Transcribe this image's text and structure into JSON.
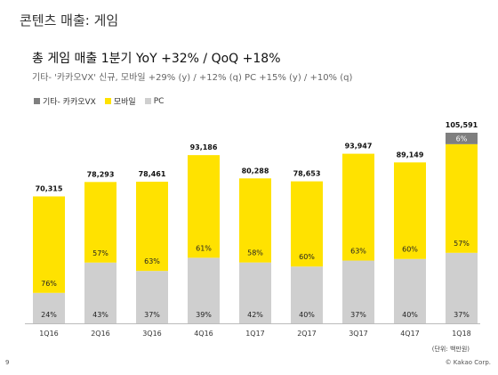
{
  "page_title": "콘텐츠 매출: 게임",
  "headline": "총 게임 매출 1분기 YoY +32% / QoQ +18%",
  "subline": "기타- '카카오VX' 신규, 모바일 +29% (y) / +12% (q)  PC +15% (y) / +10% (q)",
  "unit_note": "(단위: 백만원)",
  "page_number": "9",
  "copyright": "© Kakao Corp.",
  "colors": {
    "other": "#7f7f7f",
    "mobile": "#ffe200",
    "pc": "#cfcfcf"
  },
  "chart_data": {
    "type": "bar",
    "stacked": true,
    "categories": [
      "1Q16",
      "2Q16",
      "3Q16",
      "4Q16",
      "1Q17",
      "2Q17",
      "3Q17",
      "4Q17",
      "1Q18"
    ],
    "totals": [
      70315,
      78293,
      78461,
      93186,
      80288,
      78653,
      93947,
      89149,
      105591
    ],
    "total_labels": [
      "70,315",
      "78,293",
      "78,461",
      "93,186",
      "80,288",
      "78,653",
      "93,947",
      "89,149",
      "105,591"
    ],
    "series": [
      {
        "name": "PC",
        "key": "pc",
        "shares": [
          24,
          43,
          37,
          39,
          42,
          40,
          37,
          40,
          37
        ],
        "labels": [
          "24%",
          "43%",
          "37%",
          "39%",
          "42%",
          "40%",
          "37%",
          "40%",
          "37%"
        ]
      },
      {
        "name": "모바일",
        "key": "mobile",
        "shares": [
          76,
          57,
          63,
          61,
          58,
          60,
          63,
          60,
          57
        ],
        "labels": [
          "76%",
          "57%",
          "63%",
          "61%",
          "58%",
          "60%",
          "63%",
          "60%",
          "57%"
        ]
      },
      {
        "name": "기타- 카카오VX",
        "key": "other",
        "shares": [
          0,
          0,
          0,
          0,
          0,
          0,
          0,
          0,
          6
        ],
        "labels": [
          "",
          "",
          "",
          "",
          "",
          "",
          "",
          "",
          "6%"
        ]
      }
    ],
    "legend_order": [
      "other",
      "mobile",
      "pc"
    ],
    "legend_position": "top-left",
    "grid": false
  }
}
